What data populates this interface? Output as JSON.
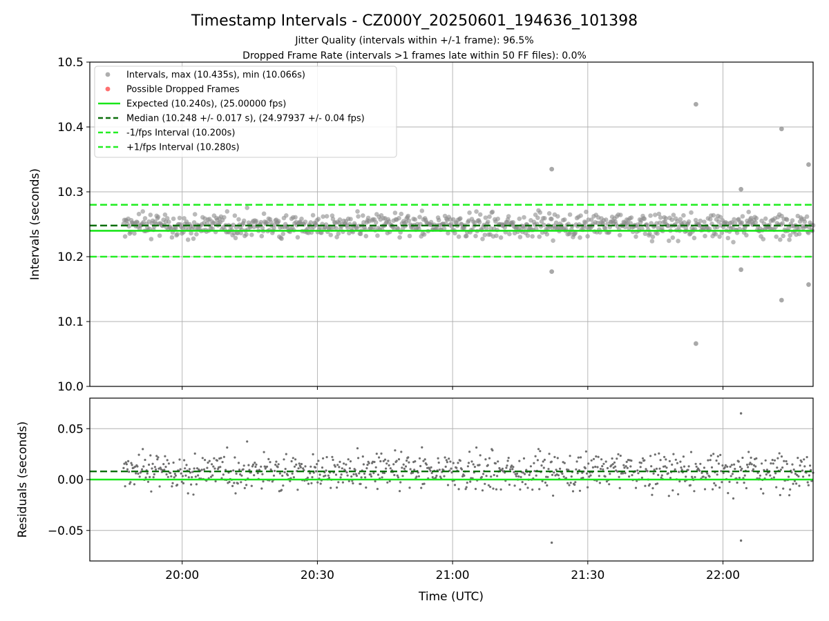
{
  "title": "Timestamp Intervals - CZ000Y_20250601_194636_101398",
  "subtitle1": "Jitter Quality (intervals within +/-1 frame): 96.5%",
  "subtitle2": "Dropped Frame Rate (intervals >1 frames late within 50 FF files): 0.0%",
  "colors": {
    "points": "#8c8c8c",
    "dropped": "#ff6060",
    "expected": "#19e619",
    "median": "#0a6e0a",
    "interval_bounds": "#22ee22",
    "grid": "#b0b0b0"
  },
  "chart_data": [
    {
      "type": "scatter",
      "name": "intervals",
      "ylabel": "Intervals (seconds)",
      "xlabel": "",
      "xlim": [
        "19:39:30",
        "22:20:00"
      ],
      "ylim": [
        10.0,
        10.5
      ],
      "yticks": [
        "10.0",
        "10.1",
        "10.2",
        "10.3",
        "10.4",
        "10.5"
      ],
      "xticks": [],
      "grid": true,
      "legend_position": "top-left",
      "legend": [
        {
          "label": "Intervals, max (10.435s), min (10.066s)",
          "style": "marker",
          "color": "#8c8c8c"
        },
        {
          "label": "Possible Dropped Frames",
          "style": "marker",
          "color": "#ff6060"
        },
        {
          "label": "Expected (10.240s), (25.00000 fps)",
          "style": "solid",
          "color": "#19e619"
        },
        {
          "label": "Median (10.248 +/- 0.017 s), (24.97937 +/- 0.04 fps)",
          "style": "dashed",
          "color": "#0a6e0a"
        },
        {
          "label": "-1/fps Interval (10.200s)",
          "style": "dashed",
          "color": "#22ee22"
        },
        {
          "label": "+1/fps Interval (10.280s)",
          "style": "dashed",
          "color": "#22ee22"
        }
      ],
      "reference_lines": {
        "expected": 10.24,
        "median": 10.248,
        "minus_1fps": 10.2,
        "plus_1fps": 10.28
      },
      "time_range": [
        "19:47",
        "22:20"
      ],
      "typical_spread": [
        10.205,
        10.29
      ],
      "outliers": [
        {
          "time": "21:22",
          "y": 10.335
        },
        {
          "time": "21:22",
          "y": 10.177
        },
        {
          "time": "21:54",
          "y": 10.435
        },
        {
          "time": "21:54",
          "y": 10.066
        },
        {
          "time": "22:04",
          "y": 10.304
        },
        {
          "time": "22:04",
          "y": 10.18
        },
        {
          "time": "22:13",
          "y": 10.397
        },
        {
          "time": "22:13",
          "y": 10.133
        },
        {
          "time": "22:19",
          "y": 10.342
        },
        {
          "time": "22:19",
          "y": 10.157
        }
      ]
    },
    {
      "type": "scatter",
      "name": "residuals",
      "ylabel": "Residuals (seconds)",
      "xlabel": "Time (UTC)",
      "xlim": [
        "19:39:30",
        "22:20:00"
      ],
      "ylim": [
        -0.08,
        0.08
      ],
      "yticks": [
        "−0.05",
        "0.00",
        "0.05"
      ],
      "xticks": [
        "20:00",
        "20:30",
        "21:00",
        "21:30",
        "22:00"
      ],
      "grid": true,
      "reference_lines": {
        "zero": 0.0,
        "median_offset": 0.008
      },
      "typical_spread": [
        -0.035,
        0.05
      ],
      "outliers": [
        {
          "time": "21:22",
          "y": -0.062
        },
        {
          "time": "22:04",
          "y": 0.065
        },
        {
          "time": "22:04",
          "y": -0.06
        }
      ]
    }
  ]
}
